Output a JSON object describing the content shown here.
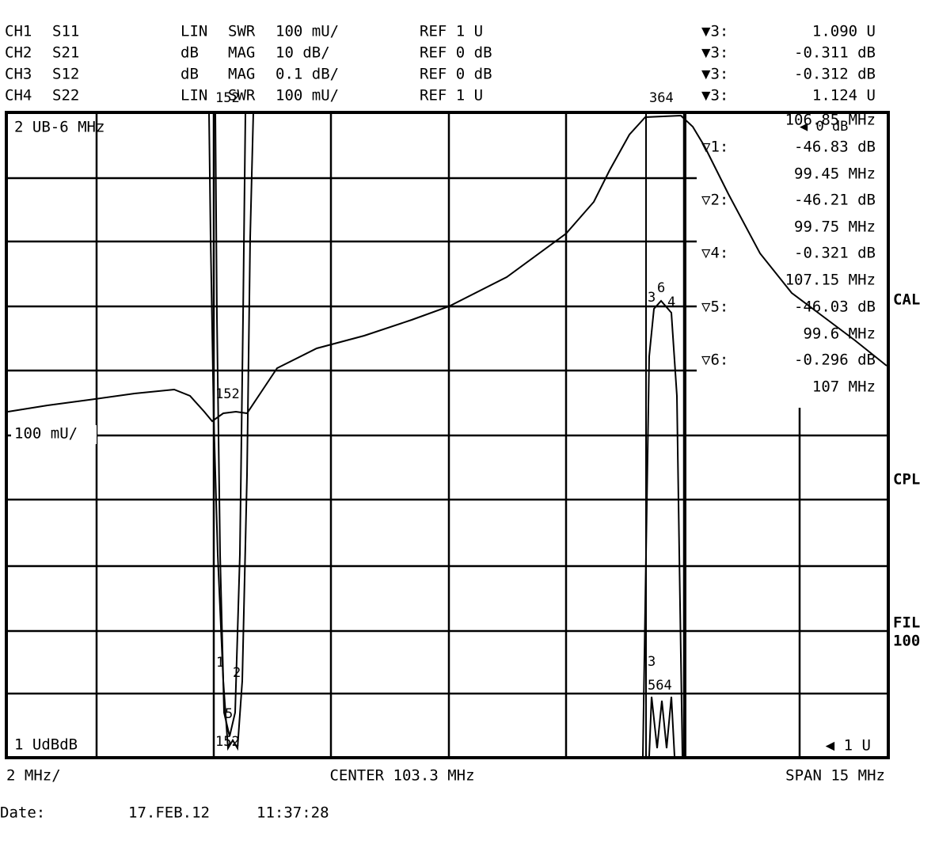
{
  "channels": [
    {
      "ch": "CH1",
      "param": "S11",
      "format": "LIN",
      "kind": "SWR",
      "scale": "100 mU/",
      "ref": "REF 1 U"
    },
    {
      "ch": "CH2",
      "param": "S21",
      "format": "dB",
      "kind": "MAG",
      "scale": "10 dB/",
      "ref": "REF 0 dB"
    },
    {
      "ch": "CH3",
      "param": "S12",
      "format": "dB",
      "kind": "MAG",
      "scale": "0.1 dB/",
      "ref": "REF 0 dB"
    },
    {
      "ch": "CH4",
      "param": "S22",
      "format": "LIN",
      "kind": "SWR",
      "scale": "100 mU/",
      "ref": "REF 1 U"
    }
  ],
  "active_markers": [
    {
      "marker": "▼3:",
      "value": "1.090  U"
    },
    {
      "marker": "▼3:",
      "value": "-0.311 dB"
    },
    {
      "marker": "▼3:",
      "value": "-0.312 dB"
    },
    {
      "marker": "▼3:",
      "value": "1.124  U"
    }
  ],
  "marker_list": {
    "first_freq": "106.85 MHz",
    "ref_indicator": "◀ 0 dB",
    "entries": [
      {
        "marker": "▽1:",
        "value": "-46.83 dB",
        "freq": "99.45 MHz"
      },
      {
        "marker": "▽2:",
        "value": "-46.21 dB",
        "freq": "99.75 MHz"
      },
      {
        "marker": "▽4:",
        "value": "-0.321 dB",
        "freq": "107.15 MHz"
      },
      {
        "marker": "▽5:",
        "value": "-46.03 dB",
        "freq": "99.6 MHz"
      },
      {
        "marker": "▽6:",
        "value": "-0.296 dB",
        "freq": "107 MHz"
      }
    ]
  },
  "softkeys": [
    "CAL",
    "CPL",
    "FIL",
    "100"
  ],
  "plot": {
    "top_label": "2 UB-6 MHz",
    "mid_label": "100 mU/",
    "bottom_label": "1 UdBdB",
    "ref_right": "◀ 1 U",
    "trace_markers": [
      "152",
      "364",
      "152",
      "3",
      "6",
      "4",
      "1",
      "2",
      "5",
      "152",
      "3",
      "564"
    ]
  },
  "footer": {
    "scale": "2 MHz/",
    "center": "CENTER 103.3 MHz",
    "span": "SPAN 15 MHz",
    "date_label": "Date:",
    "date": "17.FEB.12",
    "time": "11:37:28"
  }
}
